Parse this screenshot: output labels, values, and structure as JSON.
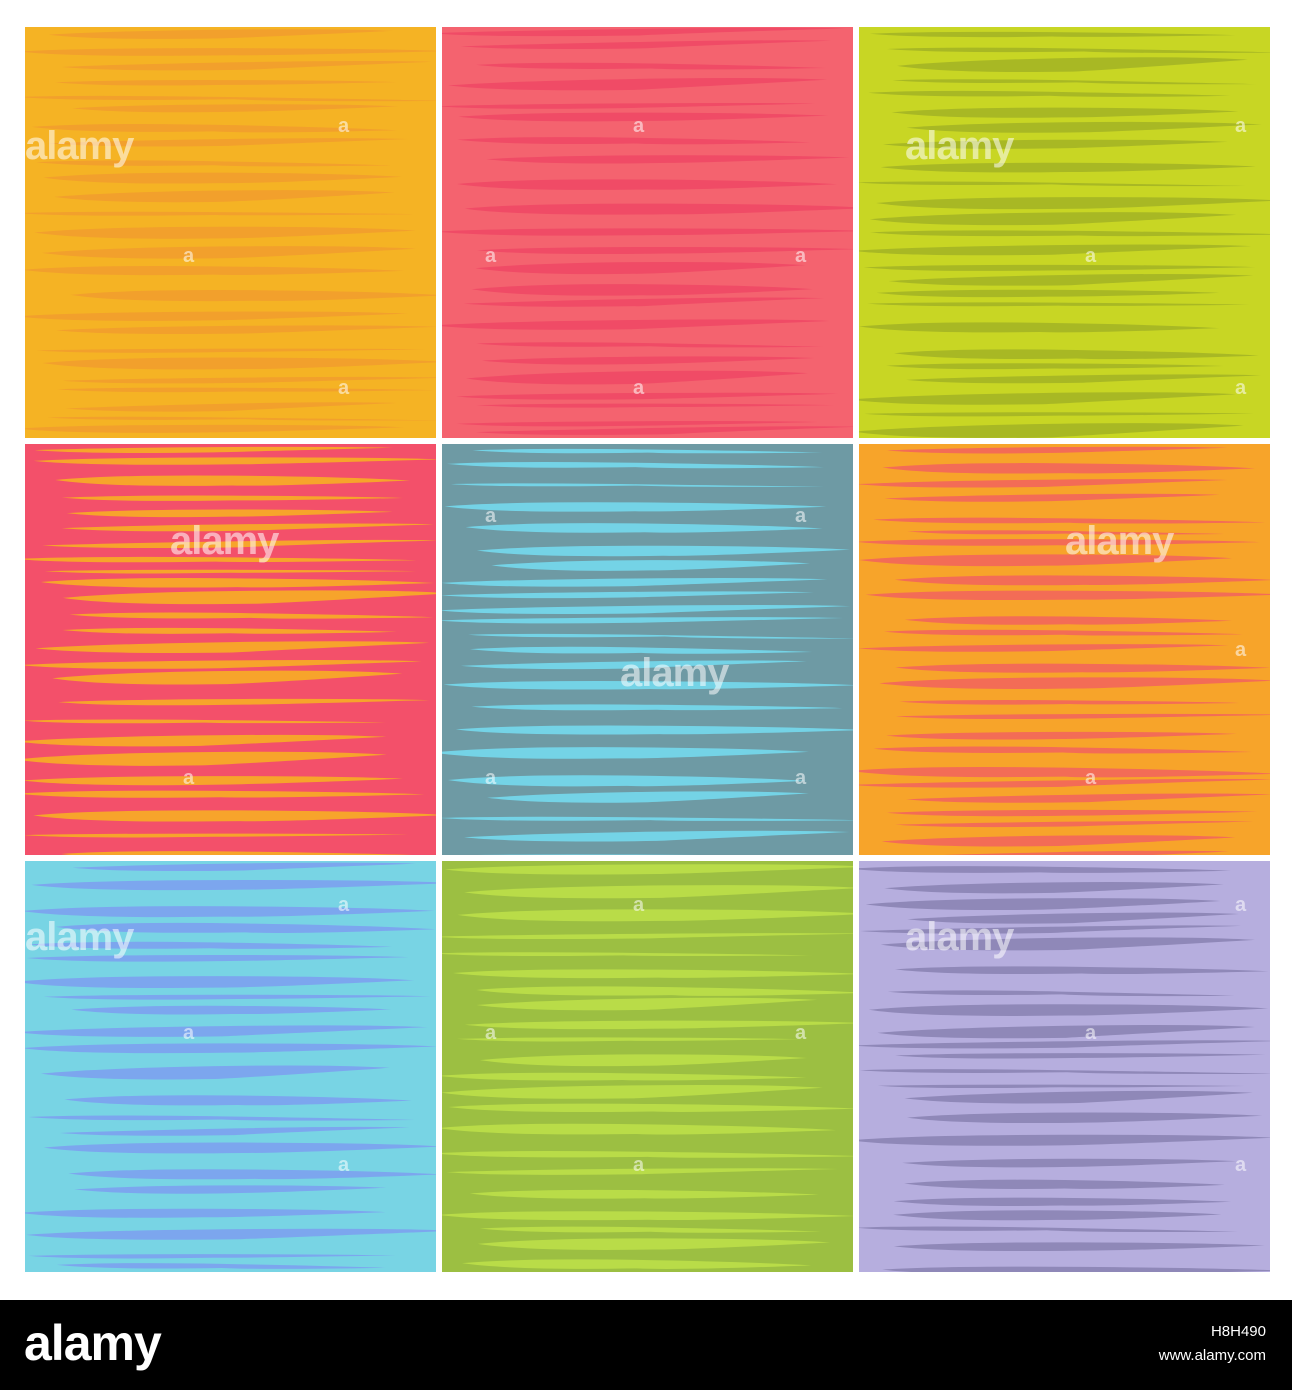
{
  "watermark": {
    "logo": "alamy",
    "mark": "a"
  },
  "tiles": [
    {
      "name": "orange",
      "bg": "#F5B324",
      "stripe": "#F2A02C"
    },
    {
      "name": "red",
      "bg": "#F4636F",
      "stripe": "#F04B66"
    },
    {
      "name": "lime",
      "bg": "#C8D624",
      "stripe": "#A8B824"
    },
    {
      "name": "red-orange",
      "bg": "#F3506A",
      "stripe": "#F7A42B"
    },
    {
      "name": "teal",
      "bg": "#6E9AA4",
      "stripe": "#74D3E6"
    },
    {
      "name": "orange-coral",
      "bg": "#F7A42A",
      "stripe": "#F36C56"
    },
    {
      "name": "sky",
      "bg": "#78D4E4",
      "stripe": "#7CA6EE"
    },
    {
      "name": "green",
      "bg": "#9CBF42",
      "stripe": "#B9DC48"
    },
    {
      "name": "lavender",
      "bg": "#B6AEDE",
      "stripe": "#8F88B8"
    }
  ],
  "footer": {
    "logo": "alamy",
    "image_id": "H8H490",
    "site": "www.alamy.com"
  }
}
